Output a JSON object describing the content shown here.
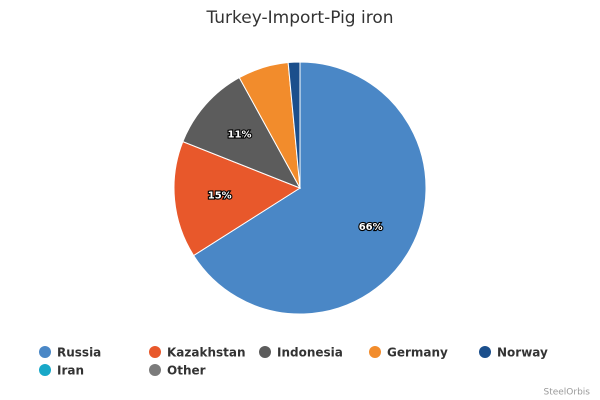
{
  "chart_data": {
    "type": "pie",
    "title": "Turkey-Import-Pig iron",
    "categories": [
      "Russia",
      "Kazakhstan",
      "Indonesia",
      "Germany",
      "Norway",
      "Iran",
      "Other"
    ],
    "values": [
      66,
      15,
      11,
      6.5,
      1.5,
      0,
      0
    ],
    "value_labels": [
      "66%",
      "15%",
      "11%",
      null,
      null,
      null,
      null
    ],
    "colors": [
      "#4a87c6",
      "#e8582b",
      "#5c5c5c",
      "#f28c2c",
      "#1b4f8c",
      "#18a8c8",
      "#7b7b7b"
    ],
    "credits": "SteelOrbis"
  }
}
